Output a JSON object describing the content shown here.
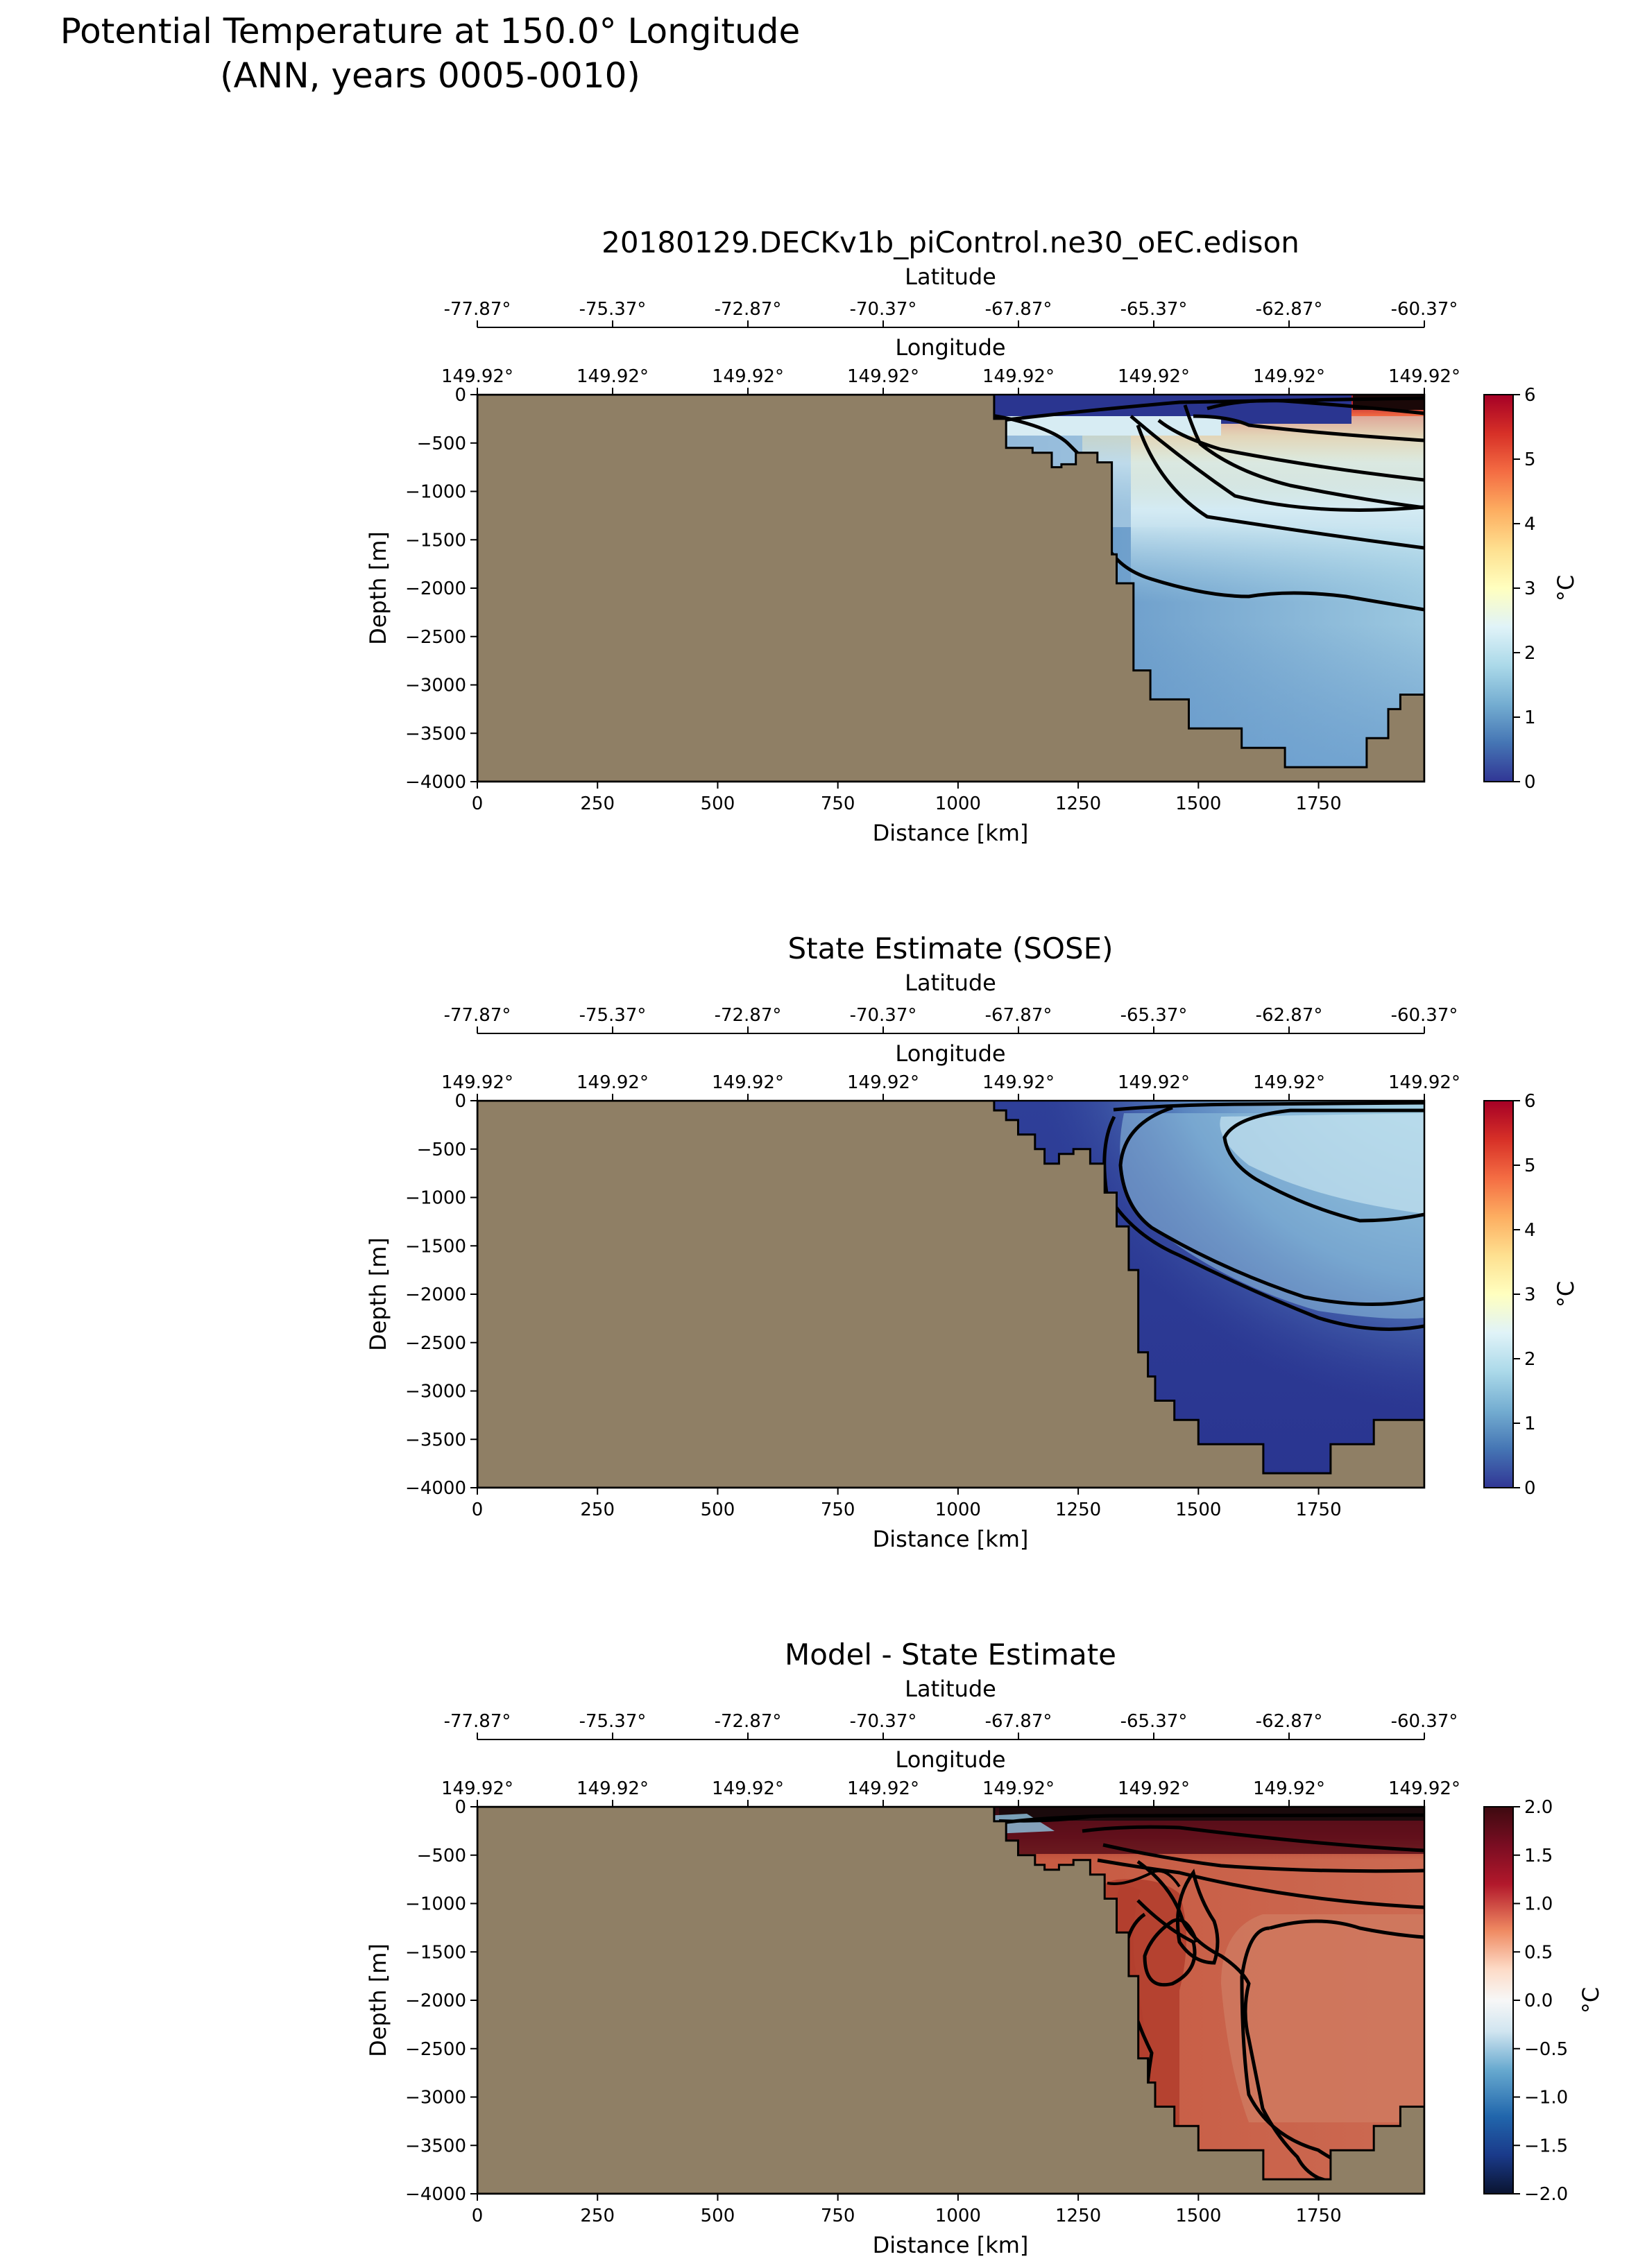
{
  "figure": {
    "title_line1": "Potential Temperature at 150.0° Longitude",
    "title_line2": "(ANN, years 0005-0010)"
  },
  "colors": {
    "land": "#8f7f65",
    "contour": "#000000"
  },
  "chart_data": [
    {
      "type": "heatmap",
      "title": "20180129.DECKv1b_piControl.ne30_oEC.edison",
      "xlabel": "Distance [km]",
      "ylabel": "Depth [m]",
      "top_xlabel": "Latitude",
      "second_top_xlabel": "Longitude",
      "xlim": [
        0,
        1970
      ],
      "ylim": [
        -4000,
        0
      ],
      "x_ticks": [
        "0",
        "250",
        "500",
        "750",
        "1000",
        "1250",
        "1500",
        "1750"
      ],
      "y_ticks": [
        "0",
        "−500",
        "−1000",
        "−1500",
        "−2000",
        "−2500",
        "−3000",
        "−3500",
        "−4000"
      ],
      "latitude_ticks": [
        "-77.87°",
        "-75.37°",
        "-72.87°",
        "-70.37°",
        "-67.87°",
        "-65.37°",
        "-62.87°",
        "-60.37°"
      ],
      "longitude_ticks": [
        "149.92°",
        "149.92°",
        "149.92°",
        "149.92°",
        "149.92°",
        "149.92°",
        "149.92°",
        "149.92°"
      ],
      "colorbar": {
        "label": "°C",
        "range": [
          0,
          6
        ],
        "ticks": [
          "0",
          "1",
          "2",
          "3",
          "4",
          "5",
          "6"
        ],
        "colormap": "RdYlBu_r"
      },
      "contour_levels": [
        0,
        1,
        2,
        3,
        4,
        5
      ],
      "bathymetry": [
        [
          0,
          -4000
        ],
        [
          0,
          0
        ],
        [
          1075,
          0
        ],
        [
          1075,
          -250
        ],
        [
          1100,
          -250
        ],
        [
          1100,
          -550
        ],
        [
          1155,
          -550
        ],
        [
          1155,
          -600
        ],
        [
          1195,
          -600
        ],
        [
          1195,
          -750
        ],
        [
          1215,
          -750
        ],
        [
          1215,
          -720
        ],
        [
          1245,
          -720
        ],
        [
          1245,
          -600
        ],
        [
          1290,
          -600
        ],
        [
          1290,
          -700
        ],
        [
          1320,
          -700
        ],
        [
          1320,
          -1650
        ],
        [
          1330,
          -1650
        ],
        [
          1330,
          -1950
        ],
        [
          1365,
          -1950
        ],
        [
          1365,
          -2850
        ],
        [
          1400,
          -2850
        ],
        [
          1400,
          -3150
        ],
        [
          1480,
          -3150
        ],
        [
          1480,
          -3450
        ],
        [
          1590,
          -3450
        ],
        [
          1590,
          -3650
        ],
        [
          1680,
          -3650
        ],
        [
          1680,
          -3850
        ],
        [
          1850,
          -3850
        ],
        [
          1850,
          -3550
        ],
        [
          1895,
          -3550
        ],
        [
          1895,
          -3250
        ],
        [
          1920,
          -3250
        ],
        [
          1920,
          -3100
        ],
        [
          1970,
          -3100
        ],
        [
          1970,
          -4000
        ]
      ]
    },
    {
      "type": "heatmap",
      "title": "State Estimate (SOSE)",
      "xlabel": "Distance [km]",
      "ylabel": "Depth [m]",
      "top_xlabel": "Latitude",
      "second_top_xlabel": "Longitude",
      "xlim": [
        0,
        1970
      ],
      "ylim": [
        -4000,
        0
      ],
      "x_ticks": [
        "0",
        "250",
        "500",
        "750",
        "1000",
        "1250",
        "1500",
        "1750"
      ],
      "y_ticks": [
        "0",
        "−500",
        "−1000",
        "−1500",
        "−2000",
        "−2500",
        "−3000",
        "−3500",
        "−4000"
      ],
      "latitude_ticks": [
        "-77.87°",
        "-75.37°",
        "-72.87°",
        "-70.37°",
        "-67.87°",
        "-65.37°",
        "-62.87°",
        "-60.37°"
      ],
      "longitude_ticks": [
        "149.92°",
        "149.92°",
        "149.92°",
        "149.92°",
        "149.92°",
        "149.92°",
        "149.92°",
        "149.92°"
      ],
      "colorbar": {
        "label": "°C",
        "range": [
          0,
          6
        ],
        "ticks": [
          "0",
          "1",
          "2",
          "3",
          "4",
          "5",
          "6"
        ],
        "colormap": "RdYlBu_r"
      },
      "contour_levels": [
        0,
        1,
        2
      ],
      "bathymetry": [
        [
          0,
          -4000
        ],
        [
          0,
          0
        ],
        [
          1075,
          0
        ],
        [
          1075,
          -100
        ],
        [
          1100,
          -100
        ],
        [
          1100,
          -200
        ],
        [
          1125,
          -200
        ],
        [
          1125,
          -350
        ],
        [
          1160,
          -350
        ],
        [
          1160,
          -500
        ],
        [
          1180,
          -500
        ],
        [
          1180,
          -650
        ],
        [
          1210,
          -650
        ],
        [
          1210,
          -550
        ],
        [
          1240,
          -550
        ],
        [
          1240,
          -500
        ],
        [
          1275,
          -500
        ],
        [
          1275,
          -650
        ],
        [
          1305,
          -650
        ],
        [
          1305,
          -950
        ],
        [
          1330,
          -950
        ],
        [
          1330,
          -1300
        ],
        [
          1355,
          -1300
        ],
        [
          1355,
          -1750
        ],
        [
          1375,
          -1750
        ],
        [
          1375,
          -2600
        ],
        [
          1395,
          -2600
        ],
        [
          1395,
          -2850
        ],
        [
          1410,
          -2850
        ],
        [
          1410,
          -3100
        ],
        [
          1450,
          -3100
        ],
        [
          1450,
          -3300
        ],
        [
          1500,
          -3300
        ],
        [
          1500,
          -3550
        ],
        [
          1635,
          -3550
        ],
        [
          1635,
          -3850
        ],
        [
          1775,
          -3850
        ],
        [
          1775,
          -3550
        ],
        [
          1865,
          -3550
        ],
        [
          1865,
          -3300
        ],
        [
          1970,
          -3300
        ],
        [
          1970,
          -4000
        ]
      ]
    },
    {
      "type": "heatmap",
      "title": "Model - State Estimate",
      "xlabel": "Distance [km]",
      "ylabel": "Depth [m]",
      "top_xlabel": "Latitude",
      "second_top_xlabel": "Longitude",
      "xlim": [
        0,
        1970
      ],
      "ylim": [
        -4000,
        0
      ],
      "x_ticks": [
        "0",
        "250",
        "500",
        "750",
        "1000",
        "1250",
        "1500",
        "1750"
      ],
      "y_ticks": [
        "0",
        "−500",
        "−1000",
        "−1500",
        "−2000",
        "−2500",
        "−3000",
        "−3500",
        "−4000"
      ],
      "latitude_ticks": [
        "-77.87°",
        "-75.37°",
        "-72.87°",
        "-70.37°",
        "-67.87°",
        "-65.37°",
        "-62.87°",
        "-60.37°"
      ],
      "longitude_ticks": [
        "149.92°",
        "149.92°",
        "149.92°",
        "149.92°",
        "149.92°",
        "149.92°",
        "149.92°",
        "149.92°"
      ],
      "colorbar": {
        "label": "°C",
        "range": [
          -2,
          2
        ],
        "ticks": [
          "−2.0",
          "−1.5",
          "−1.0",
          "−0.5",
          "0.0",
          "0.5",
          "1.0",
          "1.5",
          "2.0"
        ],
        "colormap": "RdBu_r"
      },
      "contour_levels": [
        -0.5,
        0.5,
        1.0,
        1.5
      ],
      "bathymetry": [
        [
          0,
          -4000
        ],
        [
          0,
          0
        ],
        [
          1075,
          0
        ],
        [
          1075,
          -150
        ],
        [
          1100,
          -150
        ],
        [
          1100,
          -350
        ],
        [
          1125,
          -350
        ],
        [
          1125,
          -500
        ],
        [
          1160,
          -500
        ],
        [
          1160,
          -600
        ],
        [
          1180,
          -600
        ],
        [
          1180,
          -650
        ],
        [
          1210,
          -650
        ],
        [
          1210,
          -600
        ],
        [
          1240,
          -600
        ],
        [
          1240,
          -550
        ],
        [
          1275,
          -550
        ],
        [
          1275,
          -700
        ],
        [
          1305,
          -700
        ],
        [
          1305,
          -950
        ],
        [
          1330,
          -950
        ],
        [
          1330,
          -1300
        ],
        [
          1355,
          -1300
        ],
        [
          1355,
          -1750
        ],
        [
          1375,
          -1750
        ],
        [
          1375,
          -2600
        ],
        [
          1395,
          -2600
        ],
        [
          1395,
          -2850
        ],
        [
          1410,
          -2850
        ],
        [
          1410,
          -3100
        ],
        [
          1450,
          -3100
        ],
        [
          1450,
          -3300
        ],
        [
          1500,
          -3300
        ],
        [
          1500,
          -3550
        ],
        [
          1635,
          -3550
        ],
        [
          1635,
          -3850
        ],
        [
          1775,
          -3850
        ],
        [
          1775,
          -3550
        ],
        [
          1865,
          -3550
        ],
        [
          1865,
          -3300
        ],
        [
          1920,
          -3300
        ],
        [
          1920,
          -3100
        ],
        [
          1970,
          -3100
        ],
        [
          1970,
          -4000
        ]
      ]
    }
  ]
}
